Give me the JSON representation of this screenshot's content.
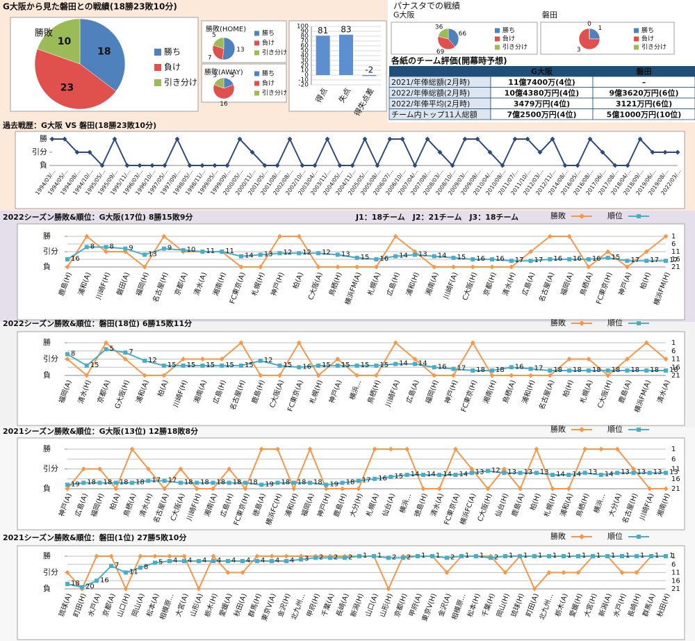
{
  "header": {
    "title": "G大阪から見た磐田との戦績(18勝23敗10分)",
    "panasuta_title": "パナスタでの戦績"
  },
  "table": {
    "title": "各紙のチーム評価(開幕時予想)",
    "columns": [
      "G大阪",
      "磐田"
    ],
    "rows": [
      [
        "2021/年俸総額(2月時)",
        "11億7400万(4位)",
        "–"
      ],
      [
        "2022/年俸総額(2月時)",
        "10億4380万円(4位)",
        "9億3620万円(6位)"
      ],
      [
        "2022/年俸平均(2月時)",
        "3479万円(4位)",
        "3121万円(6位)"
      ],
      [
        "チーム内トップ11人総額",
        "7億2500万円(4位)",
        "5億1000万円(10位)"
      ]
    ]
  },
  "chart_data": [
    {
      "type": "pie",
      "title": "勝敗",
      "categories": [
        "勝ち",
        "負け",
        "引き分け"
      ],
      "values": [
        18,
        23,
        10
      ],
      "colors": [
        "#4f81bd",
        "#e0504d",
        "#9bbb59"
      ]
    },
    {
      "type": "pie",
      "title": "勝敗(HOME)",
      "categories": [
        "勝ち",
        "負け",
        "引き分け"
      ],
      "values": [
        13,
        7,
        5
      ],
      "colors": [
        "#4f81bd",
        "#e0504d",
        "#9bbb59"
      ]
    },
    {
      "type": "pie",
      "title": "勝敗(AWAY)",
      "categories": [
        "勝ち",
        "負け",
        "引き分け"
      ],
      "values": [
        5,
        16,
        5
      ],
      "colors": [
        "#4f81bd",
        "#e0504d",
        "#9bbb59"
      ]
    },
    {
      "type": "bar",
      "categories": [
        "得点",
        "失点",
        "得失点差"
      ],
      "values": [
        81,
        83,
        -2
      ],
      "color": "#5b8fd0",
      "ylim": [
        -20,
        100
      ],
      "yticks": [
        -20,
        -10,
        0,
        10,
        20,
        30,
        40,
        50,
        60,
        70,
        80,
        90,
        100
      ]
    },
    {
      "type": "pie",
      "title": "G大阪",
      "categories": [
        "勝ち",
        "負け",
        "引き分け"
      ],
      "values": [
        66,
        69,
        36
      ],
      "colors": [
        "#4f81bd",
        "#e0504d",
        "#9bbb59"
      ]
    },
    {
      "type": "pie",
      "title": "磐田",
      "categories": [
        "勝ち",
        "負け",
        "引き分け"
      ],
      "values": [
        1,
        3,
        0
      ],
      "colors": [
        "#4f81bd",
        "#e0504d",
        "#9bbb59"
      ]
    },
    {
      "type": "line",
      "title": "過去戦歴：G大阪 VS 磐田(18勝23敗10分)",
      "color": "#2f4b7c",
      "grid": false,
      "categories": [
        "1994/03/...",
        "1994/05/...",
        "1994/08/...",
        "1994/10/...",
        "1995/05/...",
        "1995/09/...",
        "1995/11/...",
        "1996/03/...",
        "1996/10/...",
        "1997/05/...",
        "1997/09/...",
        "1998/05/...",
        "1998/11/...",
        "1999/05/...",
        "1999/09/...",
        "2000/05/...",
        "2000/11/...",
        "2001/05/...",
        "2001/08/...",
        "2002/08/...",
        "2002/10/...",
        "2003/04/...",
        "2003/11/...",
        "2004/05/...",
        "2004/11/...",
        "2005/05/...",
        "2005/08/...",
        "2006/07/...",
        "2006/10/...",
        "2007/04/...",
        "2007/08/...",
        "2008/03/...",
        "2008/10/...",
        "2009/03/...",
        "2009/08/...",
        "2010/04/...",
        "2010/08/...",
        "2011/07/...",
        "2011/10/...",
        "2012/03/...",
        "2012/11/...",
        "2014/08/...",
        "2016/05/...",
        "2016/08/...",
        "2017/06/...",
        "2017/08/...",
        "2018/04/...",
        "2018/09/...",
        "2019/06/...",
        "2019/08/...",
        "2022/03/..."
      ],
      "values": [
        3,
        3,
        2,
        2,
        1,
        3,
        1,
        1,
        1,
        1,
        3,
        1,
        1,
        1,
        1,
        3,
        2,
        1,
        1,
        3,
        1,
        1,
        3,
        1,
        1,
        3,
        1,
        3,
        3,
        1,
        3,
        2,
        1,
        3,
        3,
        2,
        1,
        3,
        3,
        2,
        3,
        1,
        1,
        3,
        2,
        1,
        1,
        3,
        2,
        2,
        2
      ],
      "ylim": [
        1,
        3
      ],
      "yticks": [
        {
          "value": 1,
          "label": "負"
        },
        {
          "value": 2,
          "label": "引分"
        },
        {
          "value": 3,
          "label": "勝"
        }
      ]
    },
    {
      "type": "line",
      "title": "2022シーズン勝敗&順位：G大阪(17位) 8勝15敗9分",
      "annotation": "J1：18チーム　J2：21チーム　J3：18チーム",
      "grid": true,
      "categories": [
        "鹿島(H)",
        "浦和(A)",
        "川崎F(H)",
        "磐田(A)",
        "福岡(H)",
        "名古屋(H)",
        "京都(A)",
        "清水(A)",
        "湘南(H)",
        "FC東京(A)",
        "札幌(H)",
        "神戸(H)",
        "柏(A)",
        "C大阪(A)",
        "鳥栖(H)",
        "横浜FM(A)",
        "札幌(A)",
        "広島(H)",
        "浦和(H)",
        "湘南(A)",
        "川崎F(A)",
        "C大阪(H)",
        "京都(H)",
        "清水(H)",
        "広島(A)",
        "名古屋(A)",
        "福岡(A)",
        "鳥栖(A)",
        "FC東京(H)",
        "神戸(A)",
        "柏(H)",
        "横浜FM(H)"
      ],
      "series": [
        {
          "name": "勝敗",
          "color": "#f79646",
          "values": [
            1,
            3,
            2,
            2,
            1,
            3,
            2,
            2,
            2,
            1,
            1,
            3,
            3,
            1,
            1,
            1,
            1,
            3,
            2,
            1,
            1,
            1,
            1,
            1,
            2,
            3,
            3,
            1,
            2,
            1,
            2,
            3
          ]
        },
        {
          "name": "順位",
          "color": "#4bacc6",
          "axis": "y2",
          "values": [
            16,
            8,
            8,
            9,
            13,
            9,
            10,
            11,
            11,
            14,
            13,
            12,
            12,
            12,
            13,
            15,
            16,
            14,
            13,
            14,
            15,
            16,
            16,
            17,
            17,
            16,
            16,
            16,
            15,
            17,
            17,
            17
          ]
        }
      ],
      "ylim": [
        1,
        3
      ],
      "yticks": [
        {
          "value": 1,
          "label": "負"
        },
        {
          "value": 2,
          "label": "引分"
        },
        {
          "value": 3,
          "label": "勝"
        }
      ],
      "y2lim": [
        21,
        1
      ],
      "y2ticks": [
        1,
        6,
        11,
        16,
        21
      ]
    },
    {
      "type": "line",
      "title": "2022シーズン勝敗&順位：磐田(18位) 6勝15敗11分",
      "grid": true,
      "categories": [
        "福岡(A)",
        "清水(H)",
        "京都(A)",
        "G大阪(H)",
        "浦和(A)",
        "柏(A)",
        "川崎F(H)",
        "湘南(A)",
        "広島(H)",
        "名古屋(H)",
        "鹿島(H)",
        "C大阪(A)",
        "FC東京(A)",
        "札幌(H)",
        "神戸(A)",
        "横浜...",
        "鳥栖(H)",
        "川崎F(A)",
        "広島(A)",
        "福岡(H)",
        "神戸(H)",
        "FC東京(H)",
        "湘南(H)",
        "鳥栖(A)",
        "浦和(H)",
        "名古屋(A)",
        "柏(H)",
        "札幌(A)",
        "C大阪(H)",
        "鹿島(A)",
        "横浜FM(A)",
        "清水(A)"
      ],
      "series": [
        {
          "name": "勝敗",
          "color": "#f79646",
          "values": [
            2,
            1,
            3,
            2,
            1,
            1,
            2,
            2,
            2,
            3,
            1,
            1,
            3,
            1,
            2,
            1,
            1,
            3,
            2,
            1,
            1,
            3,
            1,
            1,
            1,
            1,
            2,
            2,
            1,
            2,
            3,
            2
          ]
        },
        {
          "name": "順位",
          "color": "#4bacc6",
          "axis": "y2",
          "values": [
            8,
            15,
            5,
            7,
            12,
            15,
            15,
            15,
            15,
            15,
            12,
            15,
            16,
            15,
            15,
            15,
            15,
            14,
            14,
            16,
            17,
            18,
            18,
            16,
            17,
            18,
            18,
            18,
            18,
            18,
            18,
            18
          ]
        }
      ],
      "ylim": [
        1,
        3
      ],
      "yticks": [
        {
          "value": 1,
          "label": "負"
        },
        {
          "value": 2,
          "label": "引分"
        },
        {
          "value": 3,
          "label": "勝"
        }
      ],
      "y2lim": [
        21,
        1
      ],
      "y2ticks": [
        1,
        6,
        11,
        16,
        21
      ]
    },
    {
      "type": "line",
      "title": "2021シーズン勝敗&順位：G大阪(13位) 12勝18敗8分",
      "grid": true,
      "categories": [
        "神戸(A)",
        "広島(A)",
        "福岡(H)",
        "柏(A)",
        "鳥栖(A)",
        "清水(H)",
        "名古屋(A)",
        "C大阪(A)",
        "川崎F(H)",
        "湘南(A)",
        "広島(H)",
        "FC東京(H)",
        "徳島(A)",
        "横浜FC(H)",
        "浦和(H)",
        "福岡(A)",
        "神戸(H)",
        "鹿島(H)",
        "大分(H)",
        "札幌(A)",
        "仙台(A)",
        "横浜...",
        "徳島(H)",
        "清水(A)",
        "FC東京(A)",
        "横浜FC(A)",
        "C大阪(H)",
        "仙台(H)",
        "鹿島(A)",
        "柏(H)",
        "札幌(H)",
        "浦和(A)",
        "鳥栖(H)",
        "横浜...",
        "大分(A)",
        "名古屋(H)",
        "川崎F(A)",
        "湘南(H)"
      ],
      "series": [
        {
          "name": "勝敗",
          "color": "#f79646",
          "values": [
            1,
            2,
            2,
            1,
            3,
            2,
            1,
            2,
            1,
            1,
            2,
            1,
            3,
            3,
            1,
            3,
            1,
            1,
            1,
            3,
            3,
            3,
            1,
            1,
            3,
            2,
            1,
            2,
            1,
            3,
            1,
            1,
            3,
            3,
            3,
            2,
            1,
            1
          ]
        },
        {
          "name": "順位",
          "color": "#4bacc6",
          "axis": "y2",
          "values": [
            19,
            18,
            18,
            18,
            18,
            17,
            17,
            18,
            18,
            18,
            18,
            18,
            19,
            18,
            18,
            18,
            19,
            18,
            17,
            16,
            15,
            14,
            14,
            14,
            14,
            13,
            12,
            13,
            13,
            13,
            14,
            14,
            13,
            14,
            13,
            13,
            13,
            13
          ]
        }
      ],
      "ylim": [
        1,
        3
      ],
      "yticks": [
        {
          "value": 1,
          "label": "負"
        },
        {
          "value": 2,
          "label": "引分"
        },
        {
          "value": 3,
          "label": "勝"
        }
      ],
      "y2lim": [
        21,
        1
      ],
      "y2ticks": [
        1,
        6,
        11,
        16,
        21
      ]
    },
    {
      "type": "line",
      "title": "2021シーズン勝敗&順位：磐田(1位) 27勝5敗10分",
      "grid": true,
      "categories": [
        "琉球(A)",
        "町田(H)",
        "水戸(A)",
        "京都(A)",
        "山口(H)",
        "岡山(A)",
        "松本(A)",
        "相模原...",
        "大宮(A)",
        "山形(A)",
        "栃木(H)",
        "愛媛(A)",
        "秋田(A)",
        "群馬(H)",
        "東京V(A)",
        "金沢(H)",
        "北九州...",
        "甲府(H)",
        "千葉(A)",
        "長崎(A)",
        "新潟(H)",
        "山口(A)",
        "山形(H)",
        "京都(H)",
        "甲府(A)",
        "東京V(H)",
        "金沢(A)",
        "相模原...",
        "松本(H)",
        "千葉(H)",
        "岡山(H)",
        "琉球(H)",
        "町田(A)",
        "北九州...",
        "栃木(A)",
        "愛媛(H)",
        "大宮(H)",
        "新潟(A)",
        "水戸(H)",
        "長崎(H)",
        "群馬(A)",
        "秋田(H)"
      ],
      "series": [
        {
          "name": "勝敗",
          "color": "#f79646",
          "values": [
            2,
            1,
            3,
            3,
            1,
            3,
            3,
            3,
            3,
            1,
            3,
            2,
            2,
            3,
            3,
            3,
            3,
            3,
            3,
            3,
            3,
            3,
            1,
            3,
            3,
            3,
            2,
            3,
            3,
            3,
            2,
            3,
            1,
            2,
            2,
            2,
            3,
            3,
            2,
            2,
            3,
            3
          ]
        },
        {
          "name": "順位",
          "color": "#4bacc6",
          "axis": "y2",
          "values": [
            18,
            20,
            16,
            7,
            11,
            8,
            5,
            4,
            4,
            4,
            4,
            4,
            4,
            4,
            4,
            4,
            3,
            2,
            2,
            2,
            1,
            1,
            2,
            2,
            1,
            1,
            2,
            1,
            1,
            2,
            1,
            1,
            1,
            1,
            1,
            1,
            1,
            1,
            1,
            1,
            1,
            1
          ]
        }
      ],
      "ylim": [
        1,
        3
      ],
      "yticks": [
        {
          "value": 1,
          "label": "負"
        },
        {
          "value": 2,
          "label": "引分"
        },
        {
          "value": 3,
          "label": "勝"
        }
      ],
      "y2lim": [
        21,
        1
      ],
      "y2ticks": [
        1,
        6,
        11,
        16,
        21
      ]
    }
  ]
}
